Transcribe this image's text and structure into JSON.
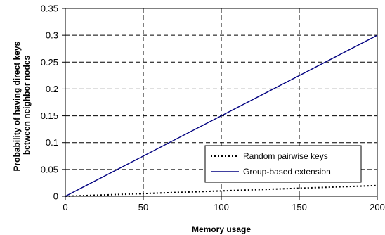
{
  "chart_data": {
    "type": "line",
    "title": "",
    "xlabel": "Memory usage",
    "ylabel_lines": [
      "Probability of having direct keys",
      "between neighbor nodes"
    ],
    "xlim": [
      0,
      200
    ],
    "ylim": [
      0,
      0.35
    ],
    "x_ticks": [
      0,
      50,
      100,
      150,
      200
    ],
    "x_tick_labels": [
      "0",
      "50",
      "100",
      "150",
      "200"
    ],
    "y_ticks": [
      0,
      0.05,
      0.1,
      0.15,
      0.2,
      0.25,
      0.3,
      0.35
    ],
    "y_tick_labels": [
      "0",
      "0.05",
      "0.1",
      "0.15",
      "0.2",
      "0.25",
      "0.3",
      "0.35"
    ],
    "grid": true,
    "legend_placement": "lower-right",
    "series": [
      {
        "name": "Random pairwise keys",
        "style": "dotted",
        "color": "#000000",
        "x": [
          0,
          200
        ],
        "y": [
          0,
          0.02
        ]
      },
      {
        "name": "Group-based extension",
        "style": "solid",
        "color": "#000080",
        "x": [
          0,
          200
        ],
        "y": [
          0,
          0.3
        ]
      }
    ]
  }
}
